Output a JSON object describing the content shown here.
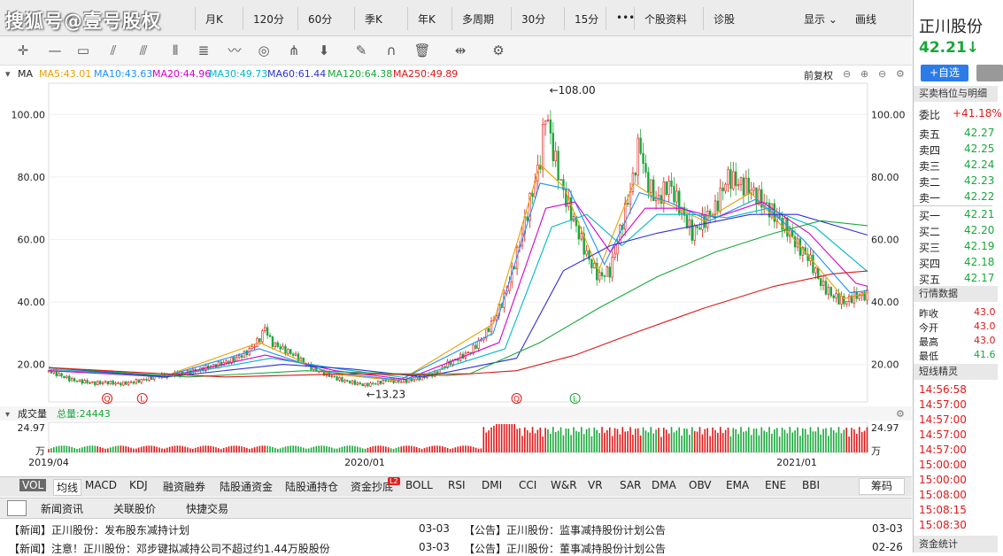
{
  "watermark": "搜狐号@壹号股权",
  "toolbar": {
    "items": [
      "月K",
      "120分",
      "60分",
      "季K",
      "年K",
      "多周期",
      "30分",
      "15分",
      "•••",
      "个股资料",
      "诊股"
    ],
    "display": "显示",
    "draw": "画线"
  },
  "ma_bar": {
    "label": "MA",
    "items": [
      {
        "text": "MA5:43.01",
        "color": "#e8a000"
      },
      {
        "text": "MA10:43.63",
        "color": "#1e90ff"
      },
      {
        "text": "MA20:44.96",
        "color": "#d400c8"
      },
      {
        "text": "MA30:49.73",
        "color": "#00b8c8"
      },
      {
        "text": "MA60:61.44",
        "color": "#3030d8"
      },
      {
        "text": "MA120:64.38",
        "color": "#18a83a"
      },
      {
        "text": "MA250:49.89",
        "color": "#d81818"
      }
    ],
    "adjust": "前复权"
  },
  "chart_data": {
    "type": "candlestick",
    "ylim": [
      8,
      110
    ],
    "y_ticks": [
      "100.00",
      "80.00",
      "60.00",
      "40.00",
      "20.00"
    ],
    "y_tick_values": [
      100,
      80,
      60,
      40,
      20
    ],
    "x_labels": [
      "2019/04",
      "2020/01",
      "2021/01"
    ],
    "annotations": [
      {
        "text": "←108.00",
        "value": 108.0
      },
      {
        "text": "←13.23",
        "value": 13.23
      }
    ],
    "markers": [
      "Q",
      "L",
      "Q",
      "L"
    ],
    "series": [
      {
        "name": "close",
        "points": [
          [
            0,
            18
          ],
          [
            10,
            16.5
          ],
          [
            20,
            15
          ],
          [
            30,
            14.5
          ],
          [
            40,
            14
          ],
          [
            50,
            14.3
          ],
          [
            60,
            13.8
          ],
          [
            70,
            14.2
          ],
          [
            80,
            15
          ],
          [
            90,
            16
          ],
          [
            100,
            16.5
          ],
          [
            110,
            17
          ],
          [
            120,
            17.5
          ],
          [
            130,
            18.5
          ],
          [
            140,
            19.5
          ],
          [
            150,
            20.5
          ],
          [
            160,
            22
          ],
          [
            170,
            24
          ],
          [
            180,
            28
          ],
          [
            185,
            32
          ],
          [
            190,
            27
          ],
          [
            200,
            25
          ],
          [
            210,
            23
          ],
          [
            220,
            20
          ],
          [
            230,
            18
          ],
          [
            240,
            16.5
          ],
          [
            250,
            15
          ],
          [
            260,
            14.2
          ],
          [
            270,
            13.4
          ],
          [
            280,
            14
          ],
          [
            290,
            15
          ],
          [
            300,
            14.5
          ],
          [
            310,
            15
          ],
          [
            320,
            16
          ],
          [
            330,
            17
          ],
          [
            340,
            20
          ],
          [
            350,
            22
          ],
          [
            360,
            24
          ],
          [
            370,
            28
          ],
          [
            380,
            34
          ],
          [
            390,
            42
          ],
          [
            400,
            55
          ],
          [
            410,
            70
          ],
          [
            420,
            85
          ],
          [
            425,
            102
          ],
          [
            430,
            90
          ],
          [
            440,
            75
          ],
          [
            450,
            65
          ],
          [
            460,
            55
          ],
          [
            470,
            48
          ],
          [
            480,
            50
          ],
          [
            490,
            65
          ],
          [
            500,
            80
          ],
          [
            505,
            92
          ],
          [
            510,
            80
          ],
          [
            520,
            72
          ],
          [
            530,
            78
          ],
          [
            540,
            70
          ],
          [
            550,
            62
          ],
          [
            560,
            66
          ],
          [
            570,
            70
          ],
          [
            580,
            80
          ],
          [
            590,
            78
          ],
          [
            600,
            76
          ],
          [
            610,
            72
          ],
          [
            620,
            68
          ],
          [
            630,
            64
          ],
          [
            640,
            58
          ],
          [
            650,
            54
          ],
          [
            660,
            46
          ],
          [
            670,
            42
          ],
          [
            680,
            40
          ],
          [
            690,
            42
          ],
          [
            700,
            42.2
          ]
        ]
      },
      {
        "name": "MA5",
        "color": "#e8a000",
        "points": [
          [
            0,
            18
          ],
          [
            100,
            16.4
          ],
          [
            180,
            27
          ],
          [
            240,
            17
          ],
          [
            300,
            14.8
          ],
          [
            380,
            33
          ],
          [
            420,
            84
          ],
          [
            440,
            77
          ],
          [
            470,
            50
          ],
          [
            500,
            78
          ],
          [
            520,
            73
          ],
          [
            560,
            66
          ],
          [
            600,
            75
          ],
          [
            640,
            59
          ],
          [
            680,
            41
          ],
          [
            700,
            43
          ]
        ]
      },
      {
        "name": "MA10",
        "color": "#1e90ff",
        "points": [
          [
            0,
            18
          ],
          [
            100,
            16.3
          ],
          [
            180,
            25
          ],
          [
            240,
            17.5
          ],
          [
            300,
            15
          ],
          [
            380,
            30
          ],
          [
            420,
            78
          ],
          [
            445,
            76
          ],
          [
            475,
            52
          ],
          [
            505,
            75
          ],
          [
            530,
            72
          ],
          [
            565,
            66
          ],
          [
            605,
            73
          ],
          [
            645,
            60
          ],
          [
            685,
            43
          ],
          [
            700,
            43.6
          ]
        ]
      },
      {
        "name": "MA20",
        "color": "#d400c8",
        "points": [
          [
            0,
            18
          ],
          [
            100,
            16
          ],
          [
            185,
            23
          ],
          [
            245,
            18
          ],
          [
            305,
            15.2
          ],
          [
            385,
            27
          ],
          [
            425,
            70
          ],
          [
            450,
            72
          ],
          [
            480,
            56
          ],
          [
            510,
            70
          ],
          [
            540,
            70
          ],
          [
            570,
            67
          ],
          [
            610,
            72
          ],
          [
            650,
            62
          ],
          [
            690,
            46
          ],
          [
            700,
            45
          ]
        ]
      },
      {
        "name": "MA30",
        "color": "#00b8c8",
        "points": [
          [
            0,
            18.5
          ],
          [
            100,
            16
          ],
          [
            190,
            22
          ],
          [
            250,
            18.5
          ],
          [
            310,
            15.5
          ],
          [
            390,
            25
          ],
          [
            430,
            64
          ],
          [
            460,
            68
          ],
          [
            490,
            58
          ],
          [
            520,
            68
          ],
          [
            550,
            68
          ],
          [
            580,
            67
          ],
          [
            615,
            70
          ],
          [
            655,
            64
          ],
          [
            700,
            49.7
          ]
        ]
      },
      {
        "name": "MA60",
        "color": "#3030d8",
        "points": [
          [
            0,
            19
          ],
          [
            100,
            16
          ],
          [
            200,
            20
          ],
          [
            260,
            18.5
          ],
          [
            320,
            16
          ],
          [
            400,
            22
          ],
          [
            440,
            50
          ],
          [
            480,
            58
          ],
          [
            520,
            62
          ],
          [
            560,
            65
          ],
          [
            600,
            68
          ],
          [
            640,
            68
          ],
          [
            700,
            61.4
          ]
        ]
      },
      {
        "name": "MA120",
        "color": "#18a83a",
        "points": [
          [
            0,
            19
          ],
          [
            120,
            16
          ],
          [
            220,
            18
          ],
          [
            300,
            17
          ],
          [
            360,
            17
          ],
          [
            420,
            27
          ],
          [
            470,
            38
          ],
          [
            520,
            48
          ],
          [
            570,
            56
          ],
          [
            620,
            62
          ],
          [
            660,
            66
          ],
          [
            700,
            64.4
          ]
        ]
      },
      {
        "name": "MA250",
        "color": "#d81818",
        "points": [
          [
            0,
            19
          ],
          [
            150,
            16
          ],
          [
            260,
            17
          ],
          [
            340,
            16.5
          ],
          [
            400,
            18
          ],
          [
            450,
            23
          ],
          [
            500,
            30
          ],
          [
            560,
            38
          ],
          [
            620,
            45
          ],
          [
            670,
            49
          ],
          [
            700,
            49.9
          ]
        ]
      }
    ],
    "volume": {
      "label": "成交量",
      "total": "总量:24443",
      "max_label": "24.97",
      "unit": "万"
    }
  },
  "indicators": [
    "VOL",
    "均线",
    "MACD",
    "KDJ",
    "融资融券",
    "陆股通资金",
    "陆股通持仓",
    "资金抄底",
    "BOLL",
    "RSI",
    "DMI",
    "CCI",
    "W&R",
    "VR",
    "SAR",
    "DMA",
    "OBV",
    "EMA",
    "ENE",
    "BBI"
  ],
  "indicator_badge": "L2",
  "chips_label": "筹码",
  "news_tabs": [
    "新闻资讯",
    "关联股价",
    "快捷交易"
  ],
  "news_left": [
    {
      "text": "【新闻】正川股份：发布股东减持计划",
      "date": "03-03"
    },
    {
      "text": "【新闻】注意！正川股份：邓步键拟减持公司不超过约1.44万股股份",
      "date": "03-03"
    }
  ],
  "news_right": [
    {
      "text": "【公告】正川股份：监事减持股份计划公告",
      "date": "03-03"
    },
    {
      "text": "【公告】正川股份：董事减持股份计划公告",
      "date": "02-26"
    }
  ],
  "panel": {
    "name": "正川股份",
    "price": "42.21↓",
    "add_btn": "+自选",
    "section_depth": "买卖档位与明细",
    "wei_label": "委比",
    "wei_value": "+41.18%",
    "asks": [
      {
        "l": "卖五",
        "p": "42.27"
      },
      {
        "l": "卖四",
        "p": "42.25"
      },
      {
        "l": "卖三",
        "p": "42.24"
      },
      {
        "l": "卖二",
        "p": "42.23"
      },
      {
        "l": "卖一",
        "p": "42.22"
      }
    ],
    "bids": [
      {
        "l": "买一",
        "p": "42.21"
      },
      {
        "l": "买二",
        "p": "42.20"
      },
      {
        "l": "买三",
        "p": "42.19"
      },
      {
        "l": "买四",
        "p": "42.18"
      },
      {
        "l": "买五",
        "p": "42.17"
      }
    ],
    "section_quote": "行情数据",
    "quote": [
      {
        "l": "昨收",
        "v": "43.0"
      },
      {
        "l": "今开",
        "v": "43.0"
      },
      {
        "l": "最高",
        "v": "43.0"
      },
      {
        "l": "最低",
        "v": "41.6"
      }
    ],
    "section_short": "短线精灵",
    "times": [
      "14:56:58",
      "14:57:00",
      "14:57:00",
      "14:57:00",
      "14:57:00",
      "15:00:00",
      "15:00:00",
      "15:08:00",
      "15:08:15",
      "15:08:30"
    ],
    "section_fund": "资金统计"
  }
}
